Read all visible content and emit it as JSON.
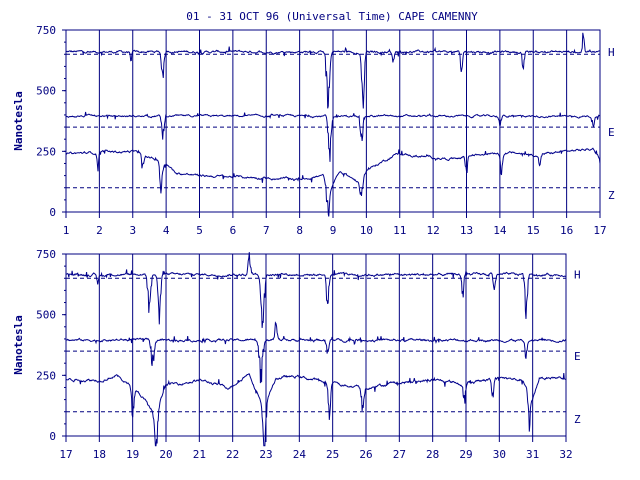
{
  "chart_data": [
    {
      "type": "line",
      "title": "01 - 31 OCT 96 (Universal Time) CAPE CAMENNY",
      "ylabel": "Nanotesla",
      "ylim": [
        0,
        750
      ],
      "yticks": [
        "0",
        "250",
        "500",
        "750"
      ],
      "xlim": [
        1,
        17
      ],
      "xticks": [
        "1",
        "2",
        "3",
        "4",
        "5",
        "6",
        "7",
        "8",
        "9",
        "10",
        "11",
        "12",
        "13",
        "14",
        "15",
        "16",
        "17"
      ],
      "baselines": [
        {
          "component": "H",
          "value": 650
        },
        {
          "component": "E",
          "value": 350
        },
        {
          "component": "Z",
          "value": 100
        }
      ],
      "series": [
        {
          "name": "H",
          "base": 660,
          "noise": 6,
          "events": [
            {
              "x": 2.95,
              "amp": -35,
              "w": 0.03
            },
            {
              "x": 3.9,
              "amp": -110,
              "w": 0.05
            },
            {
              "x": 8.85,
              "amp": -230,
              "w": 0.06
            },
            {
              "x": 9.9,
              "amp": -200,
              "w": 0.05
            },
            {
              "x": 10.8,
              "amp": -40,
              "w": 0.04
            },
            {
              "x": 12.85,
              "amp": -80,
              "w": 0.04
            },
            {
              "x": 14.7,
              "amp": -70,
              "w": 0.04
            },
            {
              "x": 16.5,
              "amp": 80,
              "w": 0.03
            }
          ]
        },
        {
          "name": "E",
          "base": 395,
          "noise": 5,
          "events": [
            {
              "x": 3.9,
              "amp": -70,
              "w": 0.05
            },
            {
              "x": 8.9,
              "amp": -160,
              "w": 0.06
            },
            {
              "x": 9.85,
              "amp": -110,
              "w": 0.05
            },
            {
              "x": 14.0,
              "amp": -35,
              "w": 0.05
            },
            {
              "x": 16.8,
              "amp": -30,
              "w": 0.04
            }
          ]
        },
        {
          "name": "Z",
          "noise": 6,
          "levels": [
            [
              1,
              240
            ],
            [
              3.0,
              250
            ],
            [
              4.0,
              200
            ],
            [
              4.3,
              160
            ],
            [
              5.0,
              150
            ],
            [
              6.0,
              145
            ],
            [
              7.0,
              140
            ],
            [
              8.0,
              135
            ],
            [
              8.7,
              150
            ],
            [
              8.95,
              100
            ],
            [
              9.2,
              170
            ],
            [
              9.8,
              120
            ],
            [
              10.0,
              170
            ],
            [
              10.9,
              240
            ],
            [
              11.5,
              230
            ],
            [
              12.5,
              220
            ],
            [
              13.5,
              240
            ],
            [
              14.0,
              250
            ],
            [
              15.0,
              235
            ],
            [
              16.0,
              250
            ],
            [
              16.8,
              260
            ],
            [
              17,
              220
            ]
          ],
          "events": [
            {
              "x": 1.95,
              "amp": -60,
              "w": 0.03
            },
            {
              "x": 3.3,
              "amp": -60,
              "w": 0.04
            },
            {
              "x": 3.85,
              "amp": -100,
              "w": 0.05
            },
            {
              "x": 8.85,
              "amp": -120,
              "w": 0.06
            },
            {
              "x": 9.85,
              "amp": -80,
              "w": 0.05
            },
            {
              "x": 13.0,
              "amp": -70,
              "w": 0.04
            },
            {
              "x": 14.05,
              "amp": -90,
              "w": 0.05
            },
            {
              "x": 15.2,
              "amp": -40,
              "w": 0.04
            }
          ]
        }
      ]
    },
    {
      "type": "line",
      "ylabel": "Nanotesla",
      "ylim": [
        0,
        750
      ],
      "yticks": [
        "0",
        "250",
        "500",
        "750"
      ],
      "xlim": [
        17,
        32
      ],
      "xticks": [
        "17",
        "18",
        "19",
        "20",
        "21",
        "22",
        "23",
        "24",
        "25",
        "26",
        "27",
        "28",
        "29",
        "30",
        "31",
        "32"
      ],
      "baselines": [
        {
          "component": "H",
          "value": 650
        },
        {
          "component": "E",
          "value": 350
        },
        {
          "component": "Z",
          "value": 100
        }
      ],
      "series": [
        {
          "name": "H",
          "base": 665,
          "noise": 6,
          "events": [
            {
              "x": 17.95,
              "amp": -40,
              "w": 0.03
            },
            {
              "x": 19.5,
              "amp": -140,
              "w": 0.06
            },
            {
              "x": 19.8,
              "amp": -160,
              "w": 0.05
            },
            {
              "x": 22.5,
              "amp": 70,
              "w": 0.05
            },
            {
              "x": 22.9,
              "amp": -230,
              "w": 0.06
            },
            {
              "x": 24.85,
              "amp": -120,
              "w": 0.05
            },
            {
              "x": 28.9,
              "amp": -80,
              "w": 0.04
            },
            {
              "x": 29.85,
              "amp": -90,
              "w": 0.04
            },
            {
              "x": 30.8,
              "amp": -160,
              "w": 0.05
            }
          ]
        },
        {
          "name": "E",
          "base": 395,
          "noise": 6,
          "events": [
            {
              "x": 19.6,
              "amp": -90,
              "w": 0.06
            },
            {
              "x": 22.85,
              "amp": -150,
              "w": 0.07
            },
            {
              "x": 23.3,
              "amp": 60,
              "w": 0.05
            },
            {
              "x": 24.85,
              "amp": -55,
              "w": 0.05
            },
            {
              "x": 30.8,
              "amp": -60,
              "w": 0.04
            }
          ]
        },
        {
          "name": "Z",
          "noise": 7,
          "levels": [
            [
              17,
              235
            ],
            [
              18.0,
              230
            ],
            [
              18.5,
              250
            ],
            [
              19.0,
              200
            ],
            [
              19.3,
              160
            ],
            [
              19.7,
              80
            ],
            [
              20.0,
              210
            ],
            [
              21.0,
              230
            ],
            [
              21.9,
              200
            ],
            [
              22.5,
              260
            ],
            [
              22.9,
              120
            ],
            [
              23.3,
              240
            ],
            [
              24.0,
              245
            ],
            [
              25.0,
              215
            ],
            [
              26.0,
              200
            ],
            [
              27.0,
              220
            ],
            [
              28.0,
              230
            ],
            [
              29.0,
              215
            ],
            [
              30.0,
              240
            ],
            [
              30.7,
              230
            ],
            [
              31.0,
              150
            ],
            [
              31.2,
              240
            ]
          ],
          "events": [
            {
              "x": 19.0,
              "amp": -100,
              "w": 0.05
            },
            {
              "x": 19.7,
              "amp": -130,
              "w": 0.06
            },
            {
              "x": 22.95,
              "amp": -200,
              "w": 0.06
            },
            {
              "x": 24.9,
              "amp": -110,
              "w": 0.05
            },
            {
              "x": 25.9,
              "amp": -90,
              "w": 0.05
            },
            {
              "x": 28.95,
              "amp": -70,
              "w": 0.05
            },
            {
              "x": 29.8,
              "amp": -80,
              "w": 0.04
            },
            {
              "x": 30.9,
              "amp": -120,
              "w": 0.05
            }
          ]
        }
      ]
    }
  ]
}
